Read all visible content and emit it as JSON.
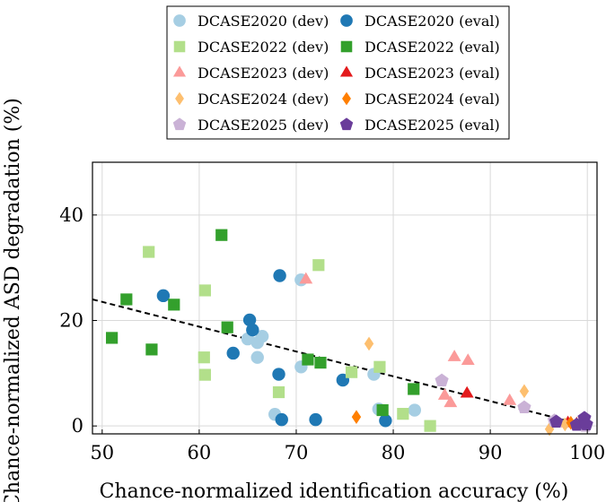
{
  "chart_data": {
    "type": "scatter",
    "xlabel": "Chance-normalized identification accuracy (%)",
    "ylabel": "Chance-normalized ASD degradation (%)",
    "xlim": [
      49,
      101
    ],
    "ylim": [
      -1.5,
      50
    ],
    "xticks": [
      50,
      60,
      70,
      80,
      90,
      100
    ],
    "yticks": [
      0,
      20,
      40
    ],
    "grid": true,
    "legend_position": "top-center",
    "trend_line": {
      "style": "dashed",
      "x": [
        49,
        100
      ],
      "y": [
        24.0,
        0.0
      ]
    },
    "series": [
      {
        "name": "DCASE2020 (dev)",
        "marker": "circle",
        "color": "#a6cee3",
        "points": [
          [
            65,
            16.5
          ],
          [
            66,
            15.8
          ],
          [
            66.5,
            17
          ],
          [
            66,
            13
          ],
          [
            67.8,
            2.2
          ],
          [
            70.5,
            11.2
          ],
          [
            70.5,
            27.7
          ],
          [
            78,
            9.8
          ],
          [
            78.5,
            3.2
          ],
          [
            82.2,
            3
          ]
        ]
      },
      {
        "name": "DCASE2020 (eval)",
        "marker": "circle",
        "color": "#1f78b4",
        "points": [
          [
            56.3,
            24.7
          ],
          [
            63.5,
            13.8
          ],
          [
            65.2,
            20.1
          ],
          [
            65.5,
            18.2
          ],
          [
            68.2,
            9.8
          ],
          [
            68.3,
            28.5
          ],
          [
            68.5,
            1.2
          ],
          [
            72,
            1.2
          ],
          [
            74.8,
            8.7
          ],
          [
            79.2,
            1
          ]
        ]
      },
      {
        "name": "DCASE2022 (dev)",
        "marker": "square",
        "color": "#b2df8a",
        "points": [
          [
            54.8,
            33
          ],
          [
            60.6,
            25.7
          ],
          [
            60.5,
            13
          ],
          [
            60.6,
            9.7
          ],
          [
            68.2,
            6.4
          ],
          [
            72.3,
            30.5
          ],
          [
            75.7,
            10.2
          ],
          [
            78.6,
            11.2
          ],
          [
            81,
            2.3
          ],
          [
            83.8,
            0
          ]
        ]
      },
      {
        "name": "DCASE2022 (eval)",
        "marker": "square",
        "color": "#33a02c",
        "points": [
          [
            51,
            16.7
          ],
          [
            52.5,
            24
          ],
          [
            55.1,
            14.5
          ],
          [
            57.4,
            23
          ],
          [
            62.3,
            36.2
          ],
          [
            62.9,
            18.7
          ],
          [
            71.2,
            12.6
          ],
          [
            72.5,
            12
          ],
          [
            78.9,
            3
          ],
          [
            82.1,
            7
          ]
        ]
      },
      {
        "name": "DCASE2023 (dev)",
        "marker": "triangle",
        "color": "#fb9a99",
        "points": [
          [
            71,
            27.8
          ],
          [
            85.3,
            5.8
          ],
          [
            85.9,
            4.4
          ],
          [
            86.3,
            13.1
          ],
          [
            87.7,
            12.4
          ],
          [
            92,
            4.8
          ]
        ]
      },
      {
        "name": "DCASE2023 (eval)",
        "marker": "triangle",
        "color": "#e31a1c",
        "points": [
          [
            87.6,
            6.2
          ],
          [
            98,
            0.6
          ],
          [
            98.9,
            0.4
          ],
          [
            99.6,
            0.8
          ]
        ]
      },
      {
        "name": "DCASE2024 (dev)",
        "marker": "diamond",
        "color": "#fdbf6f",
        "points": [
          [
            77.5,
            15.6
          ],
          [
            93.5,
            6.6
          ],
          [
            96.1,
            -0.6
          ],
          [
            97.7,
            0.3
          ]
        ]
      },
      {
        "name": "DCASE2024 (eval)",
        "marker": "diamond",
        "color": "#ff7f00",
        "points": [
          [
            76.2,
            1.7
          ],
          [
            98.3,
            0.6
          ],
          [
            99.3,
            0.5
          ]
        ]
      },
      {
        "name": "DCASE2025 (dev)",
        "marker": "pentagon",
        "color": "#cab2d6",
        "points": [
          [
            85,
            8.6
          ],
          [
            93.5,
            3.5
          ],
          [
            96.6,
            1
          ],
          [
            99.8,
            0
          ]
        ]
      },
      {
        "name": "DCASE2025 (eval)",
        "marker": "pentagon",
        "color": "#6a3d9a",
        "points": [
          [
            96.8,
            0.8
          ],
          [
            98.9,
            0.2
          ],
          [
            99.7,
            1.5
          ],
          [
            99.9,
            0.3
          ]
        ]
      }
    ]
  }
}
